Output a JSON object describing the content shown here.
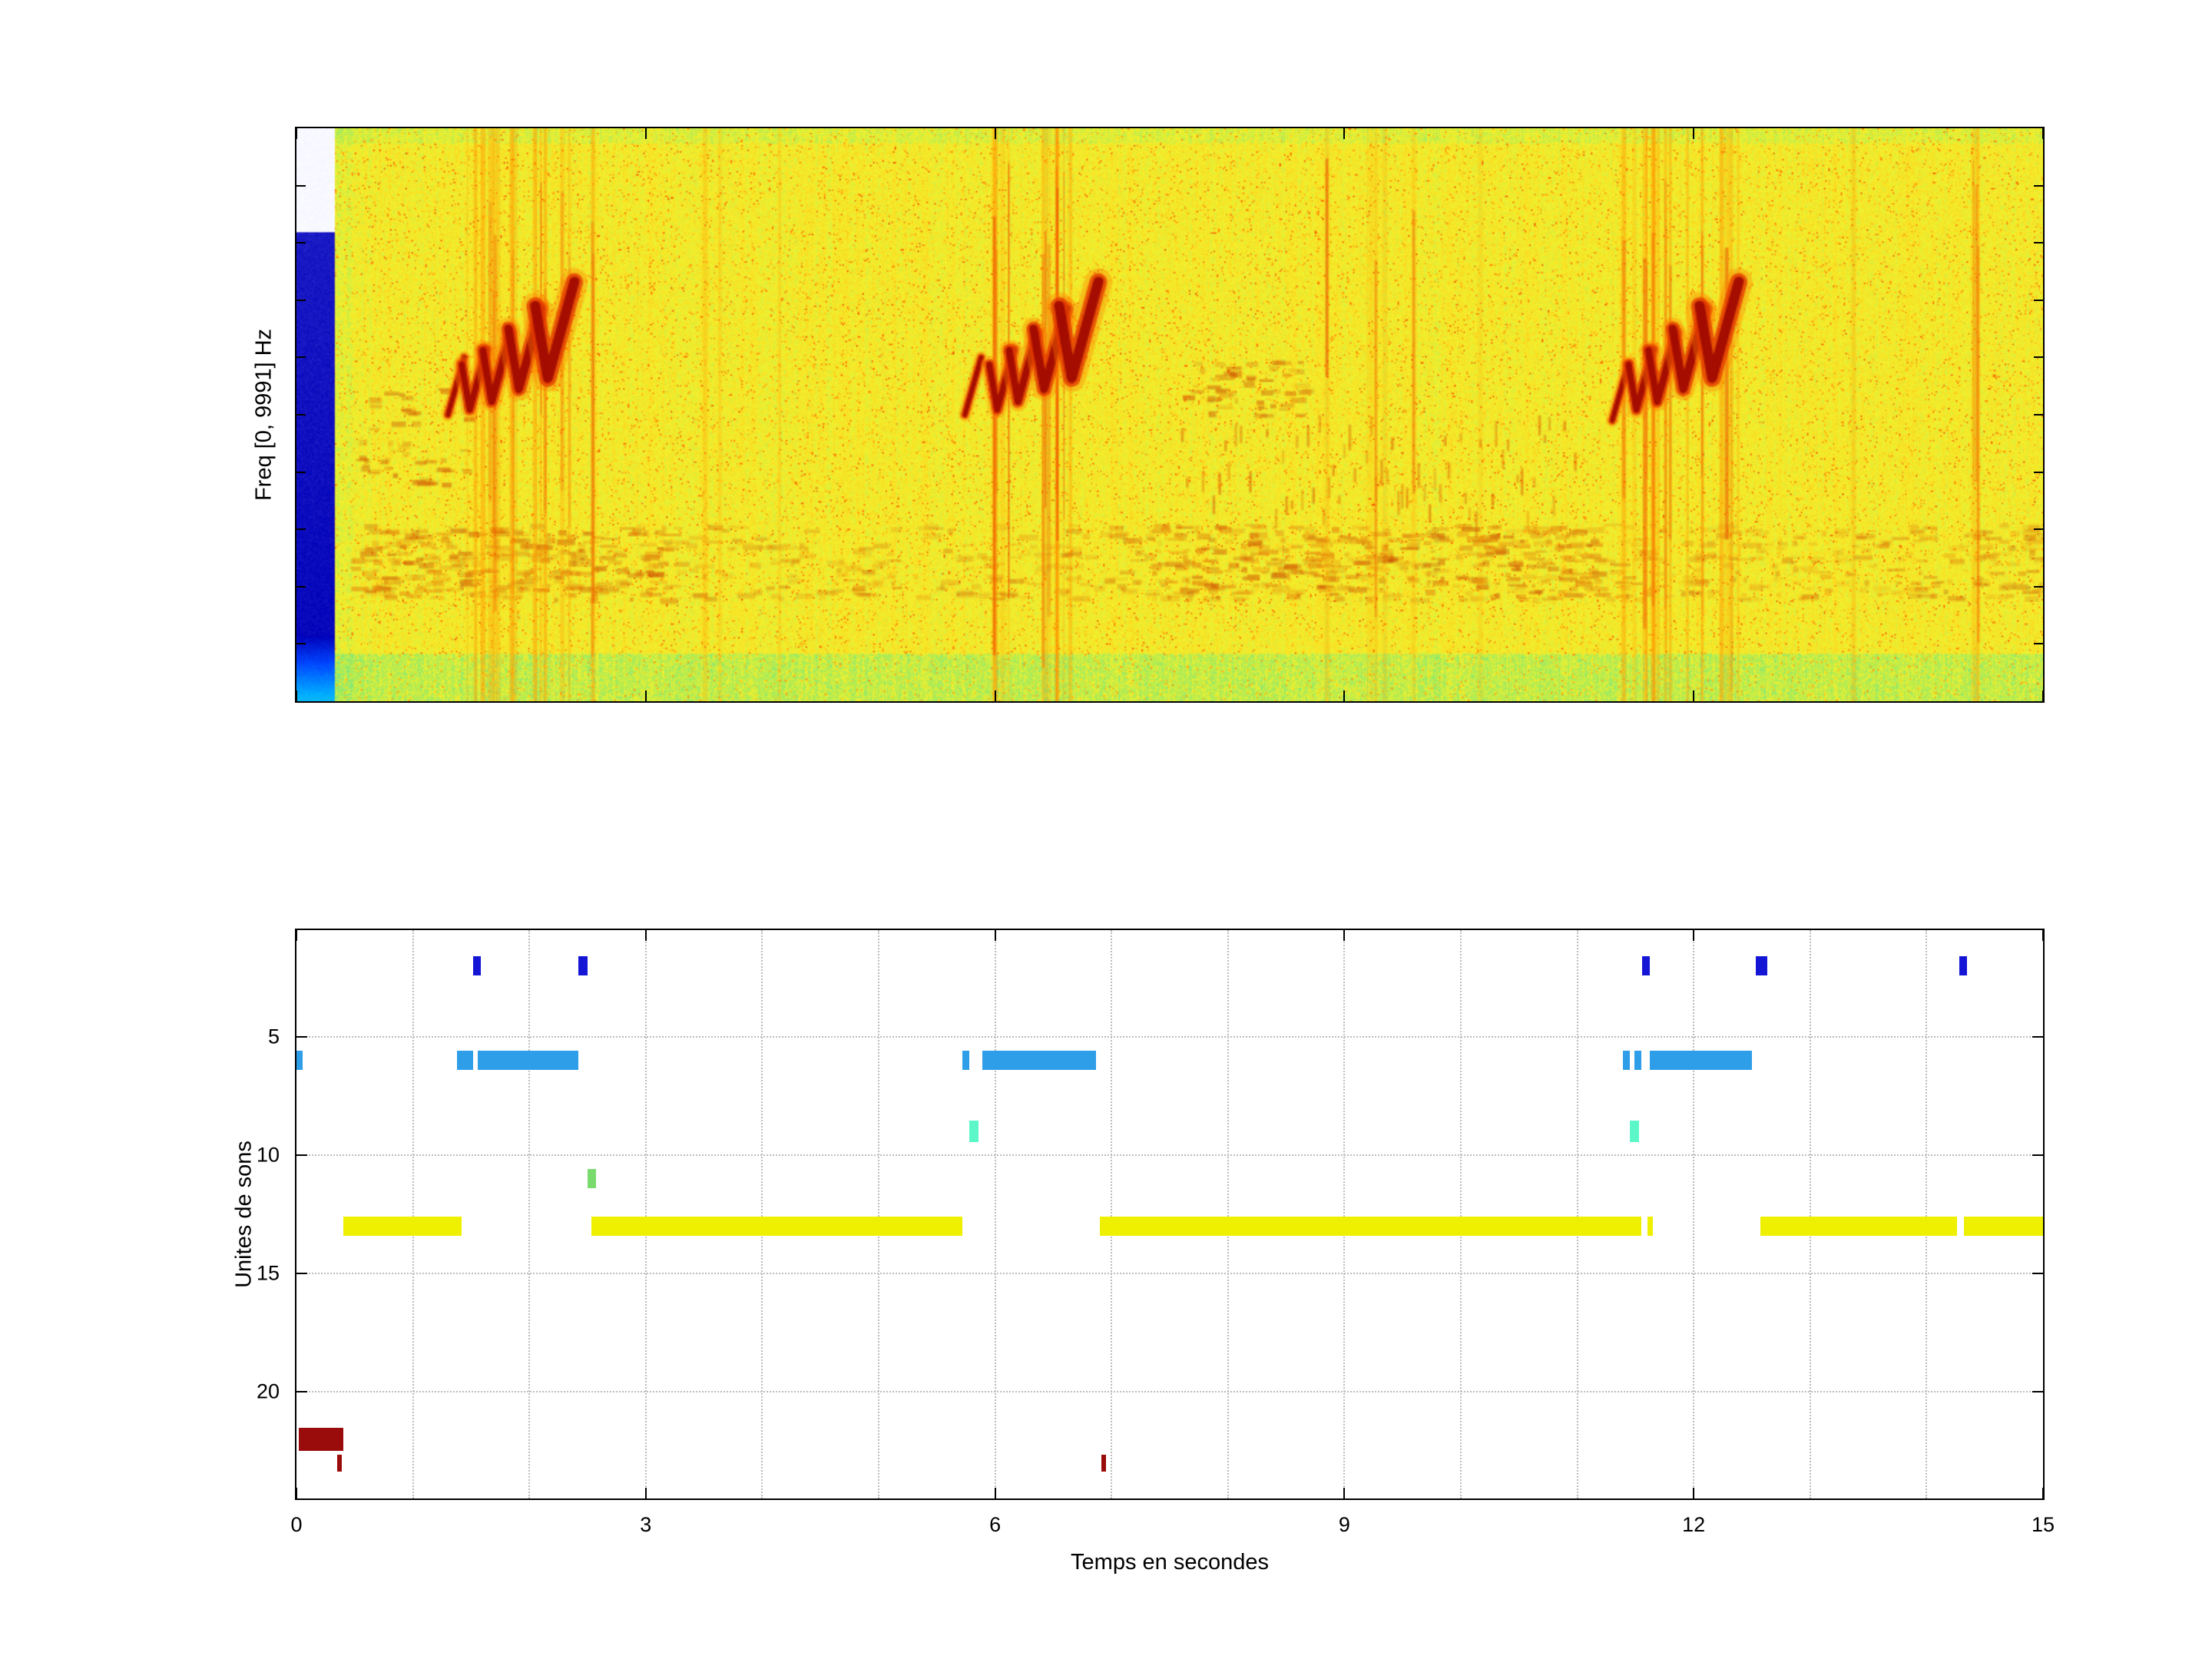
{
  "figure": {
    "background_color": "#ffffff",
    "axes_border_color": "#000000",
    "grid_color": "#bcbcbc",
    "text_color": "#000000"
  },
  "spectrogram_panel": {
    "ylabel": "Freq [0, 9991] Hz"
  },
  "units_panel": {
    "ylabel": "Unites de sons",
    "xlabel": "Temps en secondes"
  },
  "chart_data": [
    {
      "type": "heatmap",
      "role": "spectrogram",
      "ylabel": "Freq [0, 9991] Hz",
      "time_range_s": [
        0,
        15
      ],
      "freq_range_hz": [
        0,
        9991
      ],
      "colormap": "jet-like: white/blue = low energy, yellow = noise floor, orange/red = high energy",
      "noise_floor_level": 0.52,
      "silence": {
        "t0": 0,
        "t1": 0.32,
        "white_above_frac": 0.82
      },
      "onset_band": {
        "t0": 0.32,
        "t1": 0.62
      },
      "bottom_band_frac": 0.085,
      "top_band_frac": 0.975,
      "low_band": {
        "f0": 0.18,
        "f1": 0.31,
        "regions": [
          [
            0.45,
            3.2,
            0.8
          ],
          [
            3.2,
            7.3,
            0.35
          ],
          [
            7.3,
            11.2,
            0.85
          ],
          [
            11.2,
            15.0,
            0.45
          ]
        ]
      },
      "trill": {
        "t0": 7.6,
        "t1": 11.0,
        "f0": 0.33,
        "f1": 0.5
      },
      "patches": [
        {
          "t0": 0.5,
          "t1": 1.45,
          "f0": 0.38,
          "f1": 0.56,
          "count": 45
        },
        {
          "t0": 7.6,
          "t1": 8.7,
          "f0": 0.5,
          "f1": 0.6,
          "count": 55
        }
      ],
      "streak_clusters": [
        {
          "t0": 1.45,
          "t1": 2.58,
          "count": 18,
          "strength": 0.85
        },
        {
          "t0": 5.88,
          "t1": 6.8,
          "count": 13,
          "strength": 0.8
        },
        {
          "t0": 11.38,
          "t1": 12.38,
          "count": 18,
          "strength": 0.85
        },
        {
          "t0": 8.2,
          "t1": 10.6,
          "count": 7,
          "strength": 0.3
        },
        {
          "t0": 13.2,
          "t1": 13.5,
          "count": 2,
          "strength": 0.25
        },
        {
          "t0": 14.25,
          "t1": 14.45,
          "count": 3,
          "strength": 0.45
        },
        {
          "t0": 3.4,
          "t1": 4.2,
          "count": 3,
          "strength": 0.18
        }
      ],
      "syllables": [
        {
          "kind": "rise",
          "t": 1.3,
          "f": 0.5,
          "s": 0.55
        },
        {
          "kind": "chev",
          "t": 1.42,
          "f": 0.55,
          "s": 0.75
        },
        {
          "kind": "chev",
          "t": 1.6,
          "f": 0.57,
          "s": 0.85
        },
        {
          "kind": "chev",
          "t": 1.82,
          "f": 0.6,
          "s": 1.0
        },
        {
          "kind": "chev",
          "t": 2.05,
          "f": 0.63,
          "s": 1.2
        },
        {
          "kind": "rise",
          "t": 5.74,
          "f": 0.5,
          "s": 0.55
        },
        {
          "kind": "chev",
          "t": 5.95,
          "f": 0.55,
          "s": 0.75
        },
        {
          "kind": "chev",
          "t": 6.12,
          "f": 0.57,
          "s": 0.85
        },
        {
          "kind": "chev",
          "t": 6.33,
          "f": 0.6,
          "s": 1.0
        },
        {
          "kind": "chev",
          "t": 6.55,
          "f": 0.63,
          "s": 1.2
        },
        {
          "kind": "rise",
          "t": 11.3,
          "f": 0.49,
          "s": 0.55
        },
        {
          "kind": "chev",
          "t": 11.44,
          "f": 0.55,
          "s": 0.75
        },
        {
          "kind": "chev",
          "t": 11.61,
          "f": 0.57,
          "s": 0.85
        },
        {
          "kind": "chev",
          "t": 11.82,
          "f": 0.6,
          "s": 1.0
        },
        {
          "kind": "chev",
          "t": 12.05,
          "f": 0.63,
          "s": 1.2
        }
      ]
    },
    {
      "type": "bar",
      "subtype": "time-segments",
      "role": "sound-units-timeline",
      "xlabel": "Temps en secondes",
      "ylabel": "Unites de sons",
      "xlim": [
        0,
        15
      ],
      "ylim": [
        0.5,
        24.5
      ],
      "y_axis_reversed": true,
      "xticks": [
        0,
        3,
        6,
        9,
        12,
        15
      ],
      "x_grid_step": 1,
      "yticks": [
        5,
        10,
        15,
        20
      ],
      "grid": "dotted",
      "series": [
        {
          "unit": 2,
          "color": "#1515d6",
          "bar_height": 0.8,
          "spans": [
            [
              1.52,
              1.58
            ],
            [
              2.42,
              2.5
            ],
            [
              11.56,
              11.62
            ],
            [
              12.53,
              12.63
            ],
            [
              14.28,
              14.35
            ]
          ]
        },
        {
          "unit": 6,
          "color": "#2f9ee8",
          "bar_height": 0.8,
          "spans": [
            [
              0.0,
              0.05
            ],
            [
              1.38,
              1.52
            ],
            [
              1.56,
              2.42
            ],
            [
              5.72,
              5.78
            ],
            [
              5.89,
              6.87
            ],
            [
              11.39,
              11.45
            ],
            [
              11.49,
              11.55
            ],
            [
              11.62,
              12.5
            ]
          ]
        },
        {
          "unit": 9,
          "color": "#5cf7c8",
          "bar_height": 0.9,
          "spans": [
            [
              5.78,
              5.86
            ],
            [
              11.45,
              11.53
            ]
          ]
        },
        {
          "unit": 11,
          "color": "#79da6e",
          "bar_height": 0.8,
          "spans": [
            [
              2.5,
              2.57
            ]
          ]
        },
        {
          "unit": 13,
          "color": "#eff000",
          "bar_height": 0.8,
          "spans": [
            [
              0.4,
              1.42
            ],
            [
              2.53,
              5.72
            ],
            [
              6.9,
              11.55
            ],
            [
              11.6,
              11.65
            ],
            [
              12.57,
              14.26
            ],
            [
              14.32,
              15.0
            ]
          ]
        },
        {
          "unit": 22,
          "color": "#9a0b0b",
          "bar_height": 1.0,
          "spans": [
            [
              0.02,
              0.4
            ]
          ]
        },
        {
          "unit": 23,
          "color": "#9a0b0b",
          "bar_height": 0.7,
          "spans": [
            [
              0.35,
              0.39
            ],
            [
              6.91,
              6.95
            ]
          ]
        }
      ]
    }
  ]
}
